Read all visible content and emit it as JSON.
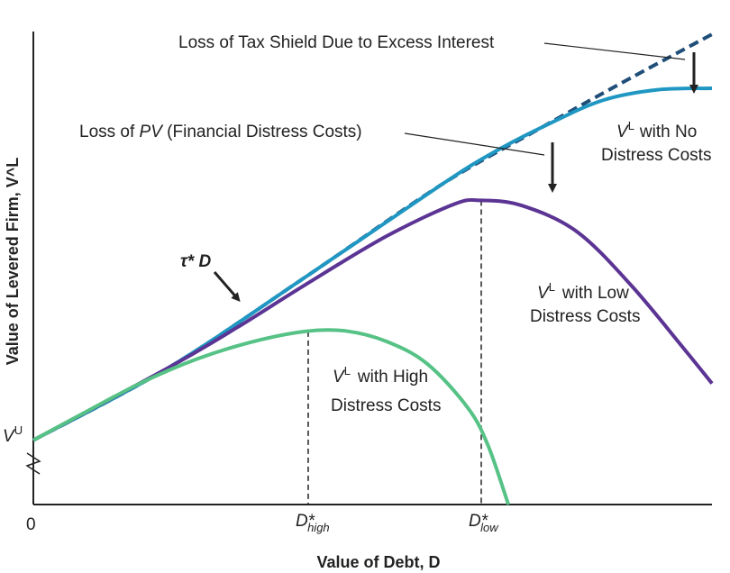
{
  "chart_data": {
    "type": "line",
    "title": "",
    "xlabel": "Value of Debt, D",
    "ylabel": "Value of Levered Firm, V^L",
    "origin_label": "0",
    "vu_label": "V^U",
    "xlim": [
      0,
      100
    ],
    "ylim": [
      0,
      100
    ],
    "grid": false,
    "colors": {
      "axis": "#222222",
      "tax_shield_dashed": "#1f4e79",
      "no_distress": "#1f97c2",
      "low_distress": "#5b3494",
      "high_distress": "#56c285",
      "text": "#222222"
    },
    "series": [
      {
        "name": "Tax shield (τ*D)",
        "style": "dashed",
        "points": [
          [
            0,
            13.6
          ],
          [
            20,
            29
          ],
          [
            40,
            48
          ],
          [
            60,
            67.5
          ],
          [
            74,
            79
          ],
          [
            86,
            88.6
          ],
          [
            100,
            99.4
          ]
        ]
      },
      {
        "name": "V^L with No Distress Costs",
        "style": "solid",
        "points": [
          [
            0,
            13.6
          ],
          [
            20,
            29
          ],
          [
            40,
            48
          ],
          [
            60,
            67.5
          ],
          [
            68,
            74.6
          ],
          [
            76,
            80.5
          ],
          [
            84,
            85.5
          ],
          [
            92,
            87.7
          ],
          [
            100,
            88
          ]
        ]
      },
      {
        "name": "V^L with Low Distress Costs",
        "style": "solid",
        "points": [
          [
            0,
            13.6
          ],
          [
            20,
            29
          ],
          [
            30,
            37.4
          ],
          [
            40,
            46.4
          ],
          [
            52,
            56.7
          ],
          [
            62,
            63.5
          ],
          [
            66,
            64.3
          ],
          [
            72,
            63.2
          ],
          [
            80,
            57.8
          ],
          [
            88,
            46.5
          ],
          [
            96,
            32.7
          ],
          [
            100,
            25.6
          ]
        ]
      },
      {
        "name": "V^L with High Distress Costs",
        "style": "solid",
        "points": [
          [
            0,
            13.6
          ],
          [
            8,
            19.8
          ],
          [
            16,
            25.8
          ],
          [
            24,
            30.7
          ],
          [
            32,
            34.3
          ],
          [
            40,
            36.6
          ],
          [
            46,
            36.7
          ],
          [
            52,
            34.5
          ],
          [
            58,
            29.8
          ],
          [
            64,
            20.5
          ],
          [
            67,
            12.5
          ],
          [
            70,
            0
          ]
        ]
      }
    ],
    "optima": [
      {
        "name": "D*high",
        "label": "D*",
        "subscript": "high",
        "x": 40.5,
        "y": 36.6
      },
      {
        "name": "D*low",
        "label": "D*",
        "subscript": "low",
        "x": 66,
        "y": 64.3
      }
    ],
    "annotations": {
      "tax_shield_loss": "Loss of Tax Shield Due to Excess Interest",
      "pv_loss_prefix": "Loss of ",
      "pv_loss_italic": "PV",
      "pv_loss_suffix": " (Financial Distress Costs)",
      "tau_d": "τ* D",
      "no_distress_line1": "with No",
      "no_distress_line2": "Distress Costs",
      "low_distress_line1": "with Low",
      "low_distress_line2": "Distress Costs",
      "high_distress_line1": "with High",
      "high_distress_line2": "Distress Costs",
      "vl_symbol": "V",
      "vl_superscript": "L",
      "vu_symbol": "V",
      "vu_superscript": "U"
    }
  }
}
